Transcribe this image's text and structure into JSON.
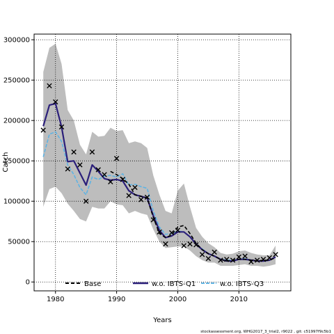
{
  "chart_data": {
    "type": "line",
    "xlabel": "Years",
    "ylabel": "Catch",
    "xlim": [
      1976.5,
      2018.5
    ],
    "ylim": [
      -11000,
      307000
    ],
    "xticks": [
      1980,
      1990,
      2000,
      2010
    ],
    "yticks": [
      0,
      50000,
      100000,
      150000,
      200000,
      250000,
      300000
    ],
    "ytick_labels": [
      "0",
      "50000",
      "100000",
      "150000",
      "200000",
      "250000",
      "300000"
    ],
    "grid": true,
    "legend_position": "bottom",
    "colors": {
      "band": "#bdbdbd",
      "base": "#000000",
      "q1": "#2b1f7a",
      "q3": "#5fb3e3",
      "grid": "#000000"
    },
    "x": [
      1978,
      1979,
      1980,
      1981,
      1982,
      1983,
      1984,
      1985,
      1986,
      1987,
      1988,
      1989,
      1990,
      1991,
      1992,
      1993,
      1994,
      1995,
      1996,
      1997,
      1998,
      1999,
      2000,
      2001,
      2002,
      2003,
      2004,
      2005,
      2006,
      2007,
      2008,
      2009,
      2010,
      2011,
      2012,
      2013,
      2014,
      2015,
      2016
    ],
    "band": {
      "upper": [
        260000,
        290000,
        295000,
        270000,
        213000,
        200000,
        170000,
        158000,
        186000,
        180000,
        181000,
        191000,
        187000,
        188000,
        172000,
        174000,
        172000,
        166000,
        132000,
        108000,
        88000,
        85000,
        113000,
        122000,
        93000,
        67000,
        56000,
        48000,
        43000,
        36000,
        34000,
        35000,
        38000,
        39000,
        36000,
        34000,
        33000,
        33000,
        45000
      ],
      "lower": [
        93000,
        115000,
        118000,
        110000,
        97000,
        88000,
        78000,
        75000,
        93000,
        91000,
        91000,
        100000,
        96000,
        95000,
        85000,
        88000,
        85000,
        83000,
        65000,
        50000,
        42000,
        43000,
        44000,
        44000,
        39000,
        32000,
        27000,
        24000,
        24000,
        20000,
        20000,
        20000,
        21000,
        22000,
        20000,
        20000,
        19000,
        20000,
        22000
      ]
    },
    "series": [
      {
        "name": "Base",
        "values": [
          null,
          null,
          null,
          null,
          null,
          null,
          null,
          null,
          null,
          null,
          null,
          137000,
          133000,
          128000,
          121000,
          108000,
          106000,
          104000,
          80000,
          60000,
          55000,
          58000,
          68000,
          70000,
          60000,
          48000,
          40000,
          35000,
          32000,
          28000,
          26000,
          27000,
          28000,
          28000,
          27000,
          26000,
          27000,
          27000,
          30000
        ]
      },
      {
        "name": "w.o. IBTS-Q1",
        "values": [
          193000,
          219000,
          221000,
          192000,
          149000,
          150000,
          135000,
          120000,
          145000,
          137000,
          128000,
          126000,
          127000,
          125000,
          113000,
          108000,
          106000,
          104000,
          82000,
          64000,
          55000,
          57000,
          62000,
          62000,
          56000,
          47000,
          40000,
          35000,
          32000,
          28000,
          26000,
          26000,
          28000,
          28000,
          27000,
          26000,
          26000,
          27000,
          31000
        ]
      },
      {
        "name": "w.o. IBTS-Q3",
        "values": [
          155000,
          183000,
          186000,
          174000,
          145000,
          133000,
          117000,
          108000,
          130000,
          127000,
          131000,
          132000,
          130000,
          134000,
          120000,
          121000,
          118000,
          116000,
          88000,
          68000,
          59000,
          60000,
          63000,
          62000,
          56000,
          47000,
          41000,
          35000,
          32000,
          28000,
          27000,
          27000,
          28000,
          29000,
          27000,
          26000,
          26000,
          27000,
          31000
        ]
      }
    ],
    "observations": {
      "x": [
        1978,
        1979,
        1980,
        1981,
        1982,
        1983,
        1984,
        1985,
        1986,
        1987,
        1988,
        1989,
        1990,
        1991,
        1992,
        1993,
        1994,
        1995,
        1996,
        1997,
        1998,
        1999,
        2000,
        2001,
        2002,
        2003,
        2004,
        2005,
        2006,
        2007,
        2008,
        2009,
        2010,
        2011,
        2012,
        2013,
        2014,
        2015,
        2016
      ],
      "y": [
        188000,
        243000,
        223000,
        192000,
        140000,
        161000,
        145000,
        100000,
        161000,
        139000,
        133000,
        124000,
        153000,
        127000,
        107000,
        117000,
        102000,
        105000,
        77000,
        62000,
        47000,
        61000,
        64000,
        45000,
        47000,
        46000,
        34000,
        29000,
        37000,
        27000,
        28000,
        27000,
        31000,
        32000,
        25000,
        27000,
        28000,
        30000,
        34000
      ]
    }
  },
  "footer": {
    "text": "stockassessment.org, WHG2017_3_trial2, r9022 , git: c51997f9c5b1"
  }
}
